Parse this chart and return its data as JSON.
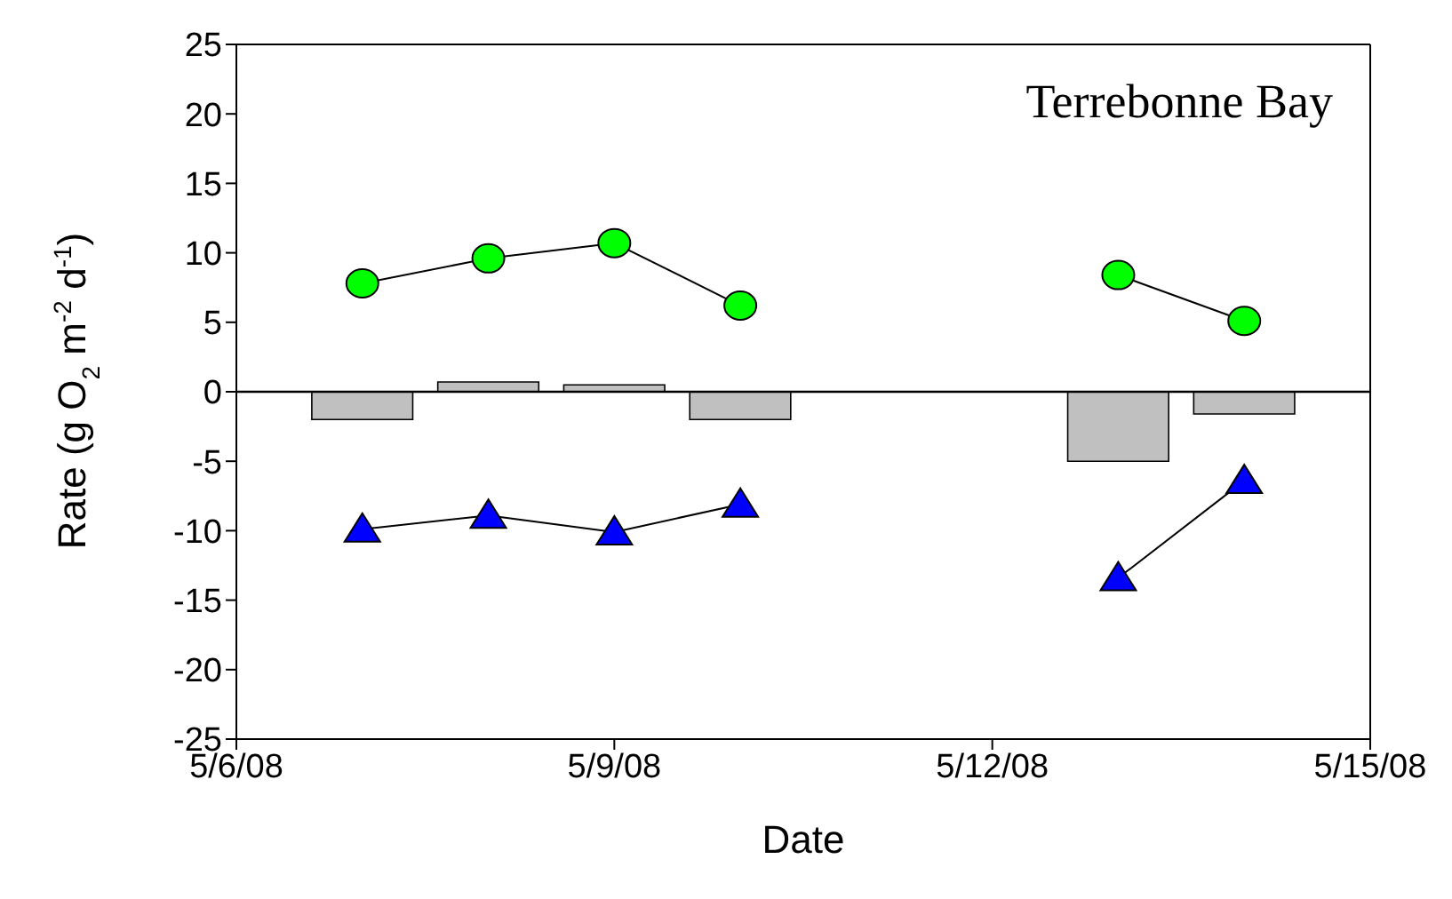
{
  "chart_data": {
    "type": "line",
    "xlabel": "Date",
    "ylabel": "Rate (g O$_{2}$ m$^{-2}$ d$^{-1}$)",
    "annotations": [
      "Terrebonne Bay"
    ],
    "x": [
      "--05-07",
      "--05-08",
      "--05-09",
      "--05-10",
      "--05-11",
      "--05-12",
      "--05-13",
      "--05-14"
    ],
    "series": [
      {
        "type": "bar",
        "color": "#c0c0c0",
        "values": [
          -2.0,
          0.7,
          0.5,
          -2.0,
          null,
          null,
          -5.0,
          -1.6
        ]
      },
      {
        "color": "#00ff00",
        "marker": "circle",
        "values": [
          7.8,
          9.6,
          10.7,
          6.2,
          null,
          null,
          8.4,
          5.1
        ]
      },
      {
        "color": "#0000ff",
        "marker": "triangle",
        "values": [
          -9.9,
          -8.9,
          -10.1,
          -8.1,
          null,
          null,
          -13.4,
          -6.4
        ]
      }
    ],
    "xlim": [
      "--05-06",
      "--05-15"
    ],
    "xticks": [
      {
        "value": "--05-06",
        "label": "5/6/08"
      },
      {
        "value": "--05-09",
        "label": "5/9/08"
      },
      {
        "value": "--05-12",
        "label": "5/12/08"
      },
      {
        "value": "--05-15",
        "label": "5/15/08"
      }
    ],
    "ylim": [
      -25,
      25
    ],
    "yticks": [
      -25,
      -20,
      -15,
      -10,
      -5,
      0,
      5,
      10,
      15,
      20,
      25
    ],
    "ref_lines": [
      {
        "axis": "y",
        "value": 0,
        "color": "#000000"
      }
    ]
  }
}
